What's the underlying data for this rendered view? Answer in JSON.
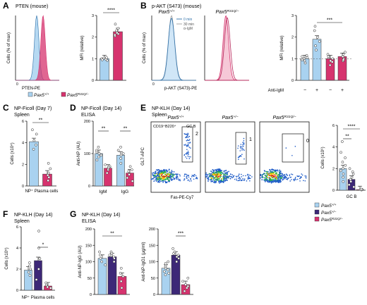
{
  "colors": {
    "wt": "#a9d2f0",
    "wt_stroke": "#2d6fa8",
    "het": "#3d2877",
    "mut": "#d6336e",
    "mut_light": "#f0a3bd",
    "gray": "#a0a0a0"
  },
  "panels": {
    "A": {
      "letter": "A",
      "title": "PTEN (mouse)",
      "hist": {
        "ylabel": "Cells (% of max)",
        "xlabel": "PTEN-PE",
        "tick0": "0"
      },
      "bar": {
        "ylabel": "MFI (relative)",
        "yticks": [
          "0",
          "1",
          "2",
          "3"
        ],
        "sig": "****",
        "chart_data": {
          "type": "bar",
          "categories": [
            "Pax5+/+",
            "Pax5R31Q/−"
          ],
          "values": [
            1.0,
            2.25
          ],
          "ylim": [
            0,
            3
          ],
          "points": [
            [
              0.92,
              0.97,
              1.0,
              1.03,
              1.05,
              0.95
            ],
            [
              2.05,
              2.15,
              2.2,
              2.3,
              2.4,
              2.6,
              2.1
            ]
          ]
        }
      },
      "legend": [
        {
          "prefix": "Pax5",
          "sup": "+/+"
        },
        {
          "prefix": "Pax5",
          "sup": "R31Q/−"
        }
      ]
    },
    "B": {
      "letter": "B",
      "title": "p-AKT (S473) (mouse)",
      "hist1_title_prefix": "Pax5",
      "hist1_title_sup": "+/+",
      "hist2_title_prefix": "Pax5",
      "hist2_title_sup": "R31Q/−",
      "hist_legend": [
        "0 min",
        "30 min",
        "α-IgM"
      ],
      "hist": {
        "ylabel": "Cells (% of max)",
        "xlabel": "p-AKT (S473)-PE",
        "tick0": "0"
      },
      "bar": {
        "ylabel": "MFI (relative)",
        "yticks": [
          "0",
          "1",
          "2",
          "3"
        ],
        "sig": "***",
        "xlabel": "Anti-IgM",
        "signs": [
          "−",
          "+",
          "−",
          "+"
        ],
        "chart_data": {
          "type": "bar",
          "categories": [
            "Pax5+/+ −",
            "Pax5+/+ +",
            "Pax5R31Q/− −",
            "Pax5R31Q/− +"
          ],
          "values": [
            1.0,
            1.9,
            1.0,
            1.1
          ],
          "ylim": [
            0,
            3
          ],
          "points": [
            [
              0.8,
              0.9,
              1.0,
              1.05,
              1.1,
              1.15,
              0.95
            ],
            [
              1.4,
              1.6,
              1.8,
              2.0,
              2.3,
              2.5
            ],
            [
              0.7,
              0.85,
              0.9,
              1.0,
              1.05,
              1.1,
              1.2
            ],
            [
              0.9,
              1.0,
              1.1,
              1.2,
              1.3,
              0.95
            ]
          ]
        }
      }
    },
    "C": {
      "letter": "C",
      "title1": "NP-Ficoll (Day 7)",
      "title2": "Spleen",
      "ylabel": "Cells (x10⁴)",
      "yticks": [
        "0",
        "2",
        "4",
        "6"
      ],
      "xlabel": "NP⁺ Plasma cells",
      "sig": "**",
      "chart_data": {
        "type": "bar",
        "categories": [
          "Pax5+/+",
          "Pax5R31Q/−"
        ],
        "values": [
          4.1,
          1.1
        ],
        "ylim": [
          0,
          6
        ],
        "points": [
          [
            3.4,
            3.8,
            4.2,
            4.8,
            5.2
          ],
          [
            0.5,
            0.8,
            1.0,
            1.2,
            1.6,
            2.1
          ]
        ]
      }
    },
    "D": {
      "letter": "D",
      "title1": "NP-Ficoll (Day 14)",
      "title2": "ELISA",
      "ylabel": "Anti-NP (AU)",
      "yticks": [
        "0",
        "100",
        "200"
      ],
      "groups": [
        "IgM",
        "IgG"
      ],
      "sig": [
        "**",
        "**"
      ],
      "chart_data": {
        "type": "bar",
        "categories": [
          "IgM",
          "IgG"
        ],
        "series": [
          {
            "name": "Pax5+/+",
            "values": [
              100,
              95
            ]
          },
          {
            "name": "Pax5R31Q/−",
            "values": [
              55,
              40
            ]
          }
        ],
        "ylim": [
          0,
          200
        ],
        "points": [
          [
            [
              80,
              90,
              100,
              110,
              120,
              95,
              105
            ],
            [
              40,
              50,
              55,
              60,
              65,
              58
            ]
          ],
          [
            [
              70,
              85,
              95,
              110,
              120,
              100
            ],
            [
              15,
              25,
              35,
              45,
              60,
              50
            ]
          ]
        ]
      }
    },
    "E": {
      "letter": "E",
      "title1": "NP-KLH (Day 14)",
      "title2": "Spleen",
      "gate_label": "CD19⁺B220⁺",
      "gc_label": "GC B",
      "ylabel_flow": "GL7-APC",
      "xlabel_flow": "Fas-PE-Cy7",
      "plots": [
        {
          "prefix": "Pax5",
          "sup": "+/+",
          "gate_value": "2"
        },
        {
          "prefix": "Pax5",
          "sup": "+/−",
          "gate_value": "1"
        },
        {
          "prefix": "Pax5",
          "sup": "R31Q/−",
          "gate_value": "0"
        }
      ],
      "bar": {
        "ylabel": "Cells (x10⁶)",
        "yticks": [
          "0",
          "2",
          "4",
          "6"
        ],
        "xlabel": "GC B",
        "sig": [
          "****",
          "**"
        ],
        "chart_data": {
          "type": "bar",
          "categories": [
            "Pax5+/+",
            "Pax5+/−",
            "Pax5R31Q/−"
          ],
          "values": [
            2.0,
            1.0,
            0.05
          ],
          "ylim": [
            0,
            6
          ],
          "points": [
            [
              0.8,
              1.2,
              1.5,
              1.8,
              2.0,
              2.3,
              2.6,
              3.0,
              3.5,
              4.5
            ],
            [
              0.3,
              0.5,
              0.8,
              1.0,
              1.2,
              1.5,
              1.7,
              2.0
            ],
            [
              0.02,
              0.05,
              0.08,
              0.1
            ]
          ]
        }
      },
      "legend": [
        {
          "prefix": "Pax5",
          "sup": "+/+"
        },
        {
          "prefix": "Pax5",
          "sup": "+/−"
        },
        {
          "prefix": "Pax5",
          "sup": "R31Q/−"
        }
      ]
    },
    "F": {
      "letter": "F",
      "title1": "NP-KLH (Day 14)",
      "title2": "Spleen",
      "ylabel": "Cells (x10⁵)",
      "yticks": [
        "0",
        "2",
        "4",
        "6"
      ],
      "xlabel": "NP⁺ Plasma cells",
      "sig": "*",
      "chart_data": {
        "type": "bar",
        "categories": [
          "Pax5+/+",
          "Pax5+/−",
          "Pax5R31Q/−"
        ],
        "values": [
          1.9,
          2.8,
          0.4
        ],
        "ylim": [
          0,
          6
        ],
        "points": [
          [
            1.4,
            1.7,
            2.0,
            2.3,
            2.6
          ],
          [
            1.0,
            2.0,
            3.0,
            4.0,
            5.6
          ],
          [
            0.2,
            0.3,
            0.5,
            0.7
          ]
        ]
      }
    },
    "G": {
      "letter": "G",
      "title1": "NP-KLH (Day 14)",
      "title2": "ELISA",
      "left": {
        "ylabel": "Anti-NP-IgG (AU)",
        "yticks": [
          "0",
          "50",
          "100",
          "150",
          "200"
        ],
        "sig": "**",
        "chart_data": {
          "type": "bar",
          "categories": [
            "Pax5+/+",
            "Pax5+/−",
            "Pax5R31Q/−"
          ],
          "values": [
            110,
            115,
            55
          ],
          "ylim": [
            0,
            200
          ],
          "points": [
            [
              90,
              100,
              110,
              120,
              130
            ],
            [
              100,
              110,
              115,
              120,
              125,
              130
            ],
            [
              20,
              40,
              55,
              65,
              80
            ]
          ]
        }
      },
      "right": {
        "ylabel": "Anti-NP-IgG1 (µg/ml)",
        "yticks": [
          "0",
          "50",
          "100",
          "150",
          "200"
        ],
        "sig": "***",
        "chart_data": {
          "type": "bar",
          "categories": [
            "Pax5+/+",
            "Pax5+/−",
            "Pax5R31Q/−"
          ],
          "values": [
            80,
            120,
            30
          ],
          "ylim": [
            0,
            200
          ],
          "points": [
            [
              60,
              70,
              80,
              85,
              90,
              95,
              100,
              75,
              65
            ],
            [
              100,
              110,
              120,
              125,
              130,
              140,
              115
            ],
            [
              10,
              20,
              30,
              40,
              50,
              25
            ]
          ]
        }
      }
    }
  }
}
